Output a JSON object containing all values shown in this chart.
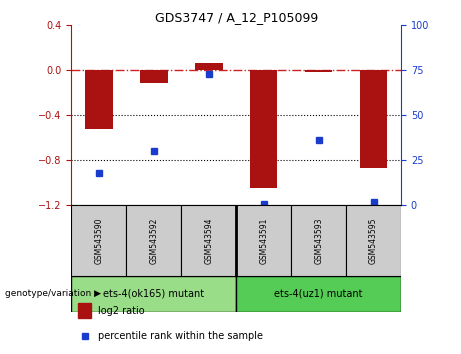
{
  "title": "GDS3747 / A_12_P105099",
  "samples": [
    "GSM543590",
    "GSM543592",
    "GSM543594",
    "GSM543591",
    "GSM543593",
    "GSM543595"
  ],
  "log2_ratio": [
    -0.52,
    -0.12,
    0.06,
    -1.05,
    -0.02,
    -0.87
  ],
  "percentile_rank": [
    18,
    30,
    73,
    1,
    36,
    2
  ],
  "ylim_left": [
    -1.2,
    0.4
  ],
  "ylim_right": [
    0,
    100
  ],
  "yticks_left": [
    0.4,
    0,
    -0.4,
    -0.8,
    -1.2
  ],
  "yticks_right": [
    100,
    75,
    50,
    25,
    0
  ],
  "group1_label": "ets-4(ok165) mutant",
  "group2_label": "ets-4(uz1) mutant",
  "bar_color": "#aa1111",
  "dot_color": "#1a3ccc",
  "hline0_color": "#cc2222",
  "hline_color": "black",
  "group1_color": "#99dd88",
  "group2_color": "#55cc55",
  "sample_box_color": "#cccccc",
  "legend_log2_label": "log2 ratio",
  "legend_pct_label": "percentile rank within the sample",
  "bar_width": 0.5
}
